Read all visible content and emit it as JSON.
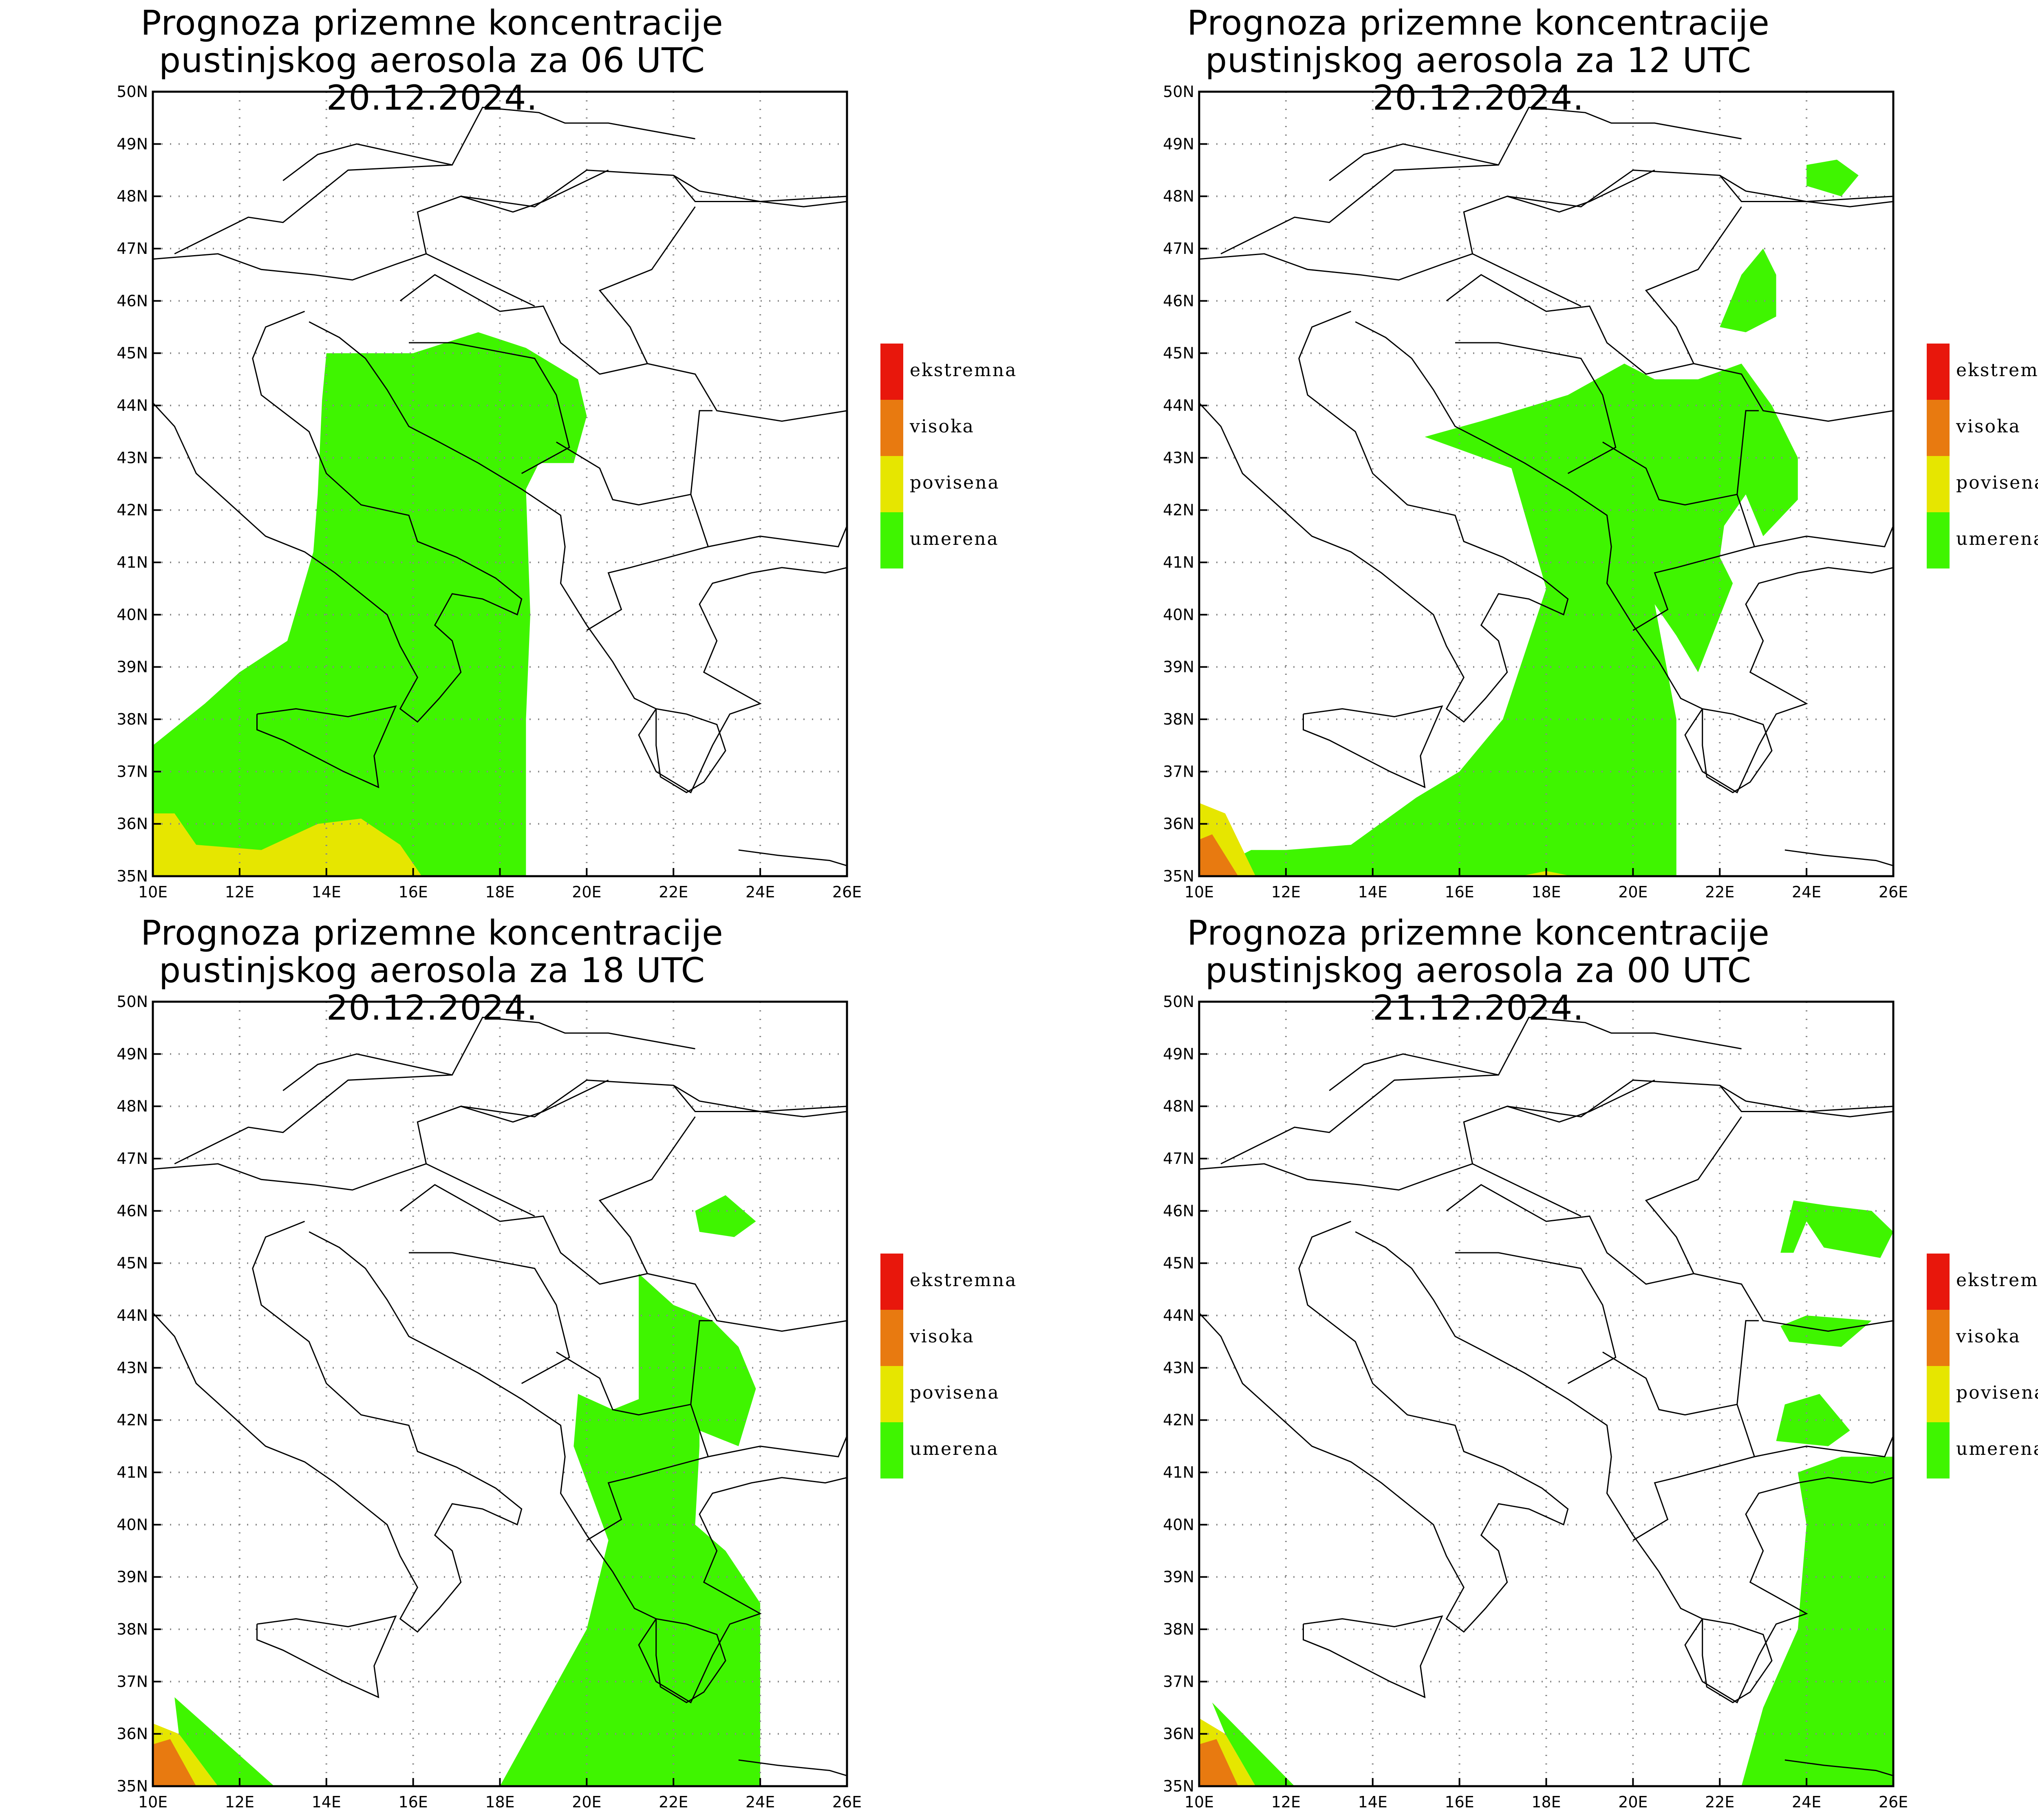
{
  "colors": {
    "ekstremna": "#e8170c",
    "visoka": "#e87a10",
    "povisena": "#e6e600",
    "umerena": "#3ff500",
    "border": "#000000",
    "grid": "#888888"
  },
  "legend": [
    {
      "label": "ekstremna",
      "color": "#e8170c"
    },
    {
      "label": "visoka",
      "color": "#e87a10"
    },
    {
      "label": "povisena",
      "color": "#e6e600"
    },
    {
      "label": "umerena",
      "color": "#3ff500"
    }
  ],
  "axes": {
    "lon_range": [
      10,
      26
    ],
    "lat_range": [
      35,
      50
    ],
    "lon_ticks": [
      "10E",
      "12E",
      "14E",
      "16E",
      "18E",
      "20E",
      "22E",
      "24E",
      "26E"
    ],
    "lat_ticks": [
      "35N",
      "36N",
      "37N",
      "38N",
      "39N",
      "40N",
      "41N",
      "42N",
      "43N",
      "44N",
      "45N",
      "46N",
      "47N",
      "48N",
      "49N",
      "50N"
    ],
    "grid": "dotted"
  },
  "panels": [
    {
      "title_line1": "Prognoza prizemne koncentracije",
      "title_line2": "pustinjskog aerosola za 06 UTC 20.12.2024."
    },
    {
      "title_line1": "Prognoza prizemne koncentracije",
      "title_line2": "pustinjskog aerosola za 12 UTC 20.12.2024."
    },
    {
      "title_line1": "Prognoza prizemne koncentracije",
      "title_line2": "pustinjskog aerosola za 18 UTC 20.12.2024."
    },
    {
      "title_line1": "Prognoza prizemne koncentracije",
      "title_line2": "pustinjskog aerosola za 00 UTC 21.12.2024."
    }
  ]
}
